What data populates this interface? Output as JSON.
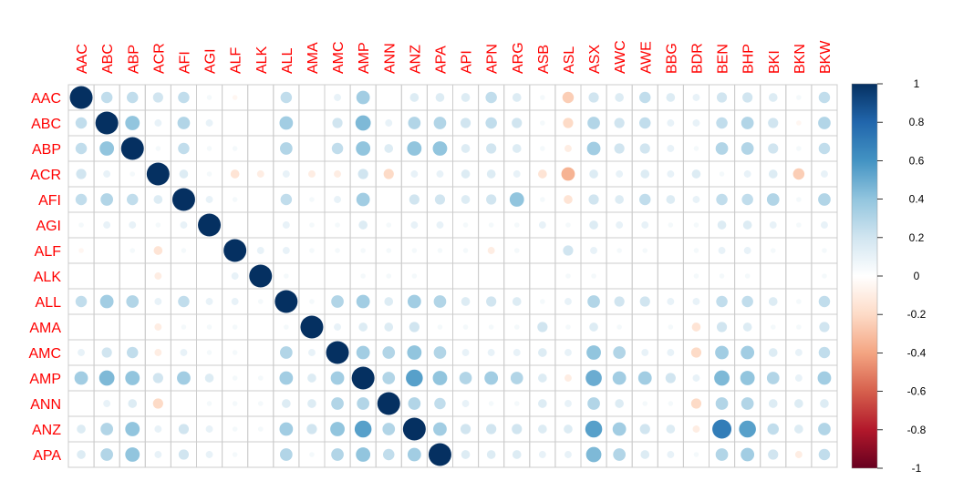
{
  "chart_data": {
    "type": "heatmap",
    "style": "circle correlation matrix",
    "value_range": [
      -1,
      1
    ],
    "columns": [
      "AAC",
      "ABC",
      "ABP",
      "ACR",
      "AFI",
      "AGI",
      "ALF",
      "ALK",
      "ALL",
      "AMA",
      "AMC",
      "AMP",
      "ANN",
      "ANZ",
      "APA",
      "API",
      "APN",
      "ARG",
      "ASB",
      "ASL",
      "ASX",
      "AWC",
      "AWE",
      "BBG",
      "BDR",
      "BEN",
      "BHP",
      "BKI",
      "BKN",
      "BKW"
    ],
    "rows": [
      "AAC",
      "ABC",
      "ABP",
      "ACR",
      "AFI",
      "AGI",
      "ALF",
      "ALK",
      "ALL",
      "AMA",
      "AMC",
      "AMP",
      "ANN",
      "ANZ",
      "APA"
    ],
    "values": [
      [
        1.0,
        0.25,
        0.25,
        0.2,
        0.25,
        0.05,
        -0.05,
        0.0,
        0.25,
        0.0,
        0.1,
        0.35,
        0.0,
        0.15,
        0.15,
        0.15,
        0.25,
        0.15,
        0.05,
        -0.25,
        0.2,
        0.15,
        0.25,
        0.15,
        0.1,
        0.2,
        0.2,
        0.15,
        0.05,
        0.25
      ],
      [
        0.25,
        1.0,
        0.4,
        0.1,
        0.3,
        0.1,
        0.0,
        0.0,
        0.35,
        0.0,
        0.2,
        0.45,
        0.1,
        0.3,
        0.3,
        0.2,
        0.25,
        0.2,
        0.05,
        -0.2,
        0.3,
        0.2,
        0.25,
        0.1,
        0.1,
        0.25,
        0.3,
        0.2,
        -0.05,
        0.3
      ],
      [
        0.25,
        0.4,
        1.0,
        0.05,
        0.25,
        0.05,
        0.05,
        0.0,
        0.3,
        0.0,
        0.25,
        0.4,
        0.15,
        0.4,
        0.4,
        0.15,
        0.2,
        0.15,
        0.05,
        -0.1,
        0.35,
        0.2,
        0.2,
        0.1,
        0.05,
        0.3,
        0.3,
        0.2,
        0.05,
        0.25
      ],
      [
        0.2,
        0.1,
        0.05,
        1.0,
        0.15,
        0.05,
        -0.15,
        -0.1,
        0.1,
        -0.1,
        -0.1,
        0.2,
        -0.2,
        0.1,
        0.1,
        0.15,
        0.15,
        0.1,
        -0.15,
        -0.35,
        0.15,
        0.1,
        0.15,
        0.1,
        0.15,
        0.05,
        0.1,
        0.15,
        -0.25,
        0.1
      ],
      [
        0.25,
        0.3,
        0.25,
        0.15,
        1.0,
        0.1,
        0.05,
        0.0,
        0.25,
        0.05,
        0.1,
        0.35,
        0.0,
        0.2,
        0.2,
        0.15,
        0.2,
        0.4,
        0.05,
        -0.15,
        0.2,
        0.15,
        0.25,
        0.15,
        0.1,
        0.25,
        0.25,
        0.3,
        0.05,
        0.3
      ],
      [
        0.05,
        0.1,
        0.1,
        0.05,
        0.1,
        1.0,
        0.0,
        0.0,
        0.1,
        0.05,
        0.05,
        0.15,
        0.05,
        0.1,
        0.1,
        0.05,
        0.05,
        0.05,
        0.1,
        0.05,
        0.15,
        0.1,
        0.1,
        0.05,
        0.05,
        0.15,
        0.15,
        0.1,
        0.05,
        0.1
      ],
      [
        -0.05,
        0.0,
        0.05,
        -0.15,
        0.05,
        0.0,
        1.0,
        0.1,
        0.1,
        0.05,
        0.05,
        0.05,
        0.05,
        0.05,
        0.05,
        0.05,
        -0.1,
        0.05,
        0.0,
        0.2,
        0.1,
        0.05,
        0.05,
        0.0,
        0.05,
        0.1,
        0.1,
        0.05,
        0.0,
        0.05
      ],
      [
        0.0,
        0.0,
        0.0,
        -0.1,
        0.0,
        0.0,
        0.1,
        1.0,
        0.05,
        0.0,
        0.0,
        0.05,
        0.05,
        0.05,
        0.0,
        0.0,
        0.0,
        0.0,
        0.0,
        0.05,
        0.05,
        0.0,
        0.0,
        0.0,
        0.05,
        0.05,
        0.05,
        0.0,
        0.0,
        0.05
      ],
      [
        0.25,
        0.35,
        0.3,
        0.1,
        0.25,
        0.1,
        0.1,
        0.05,
        1.0,
        0.05,
        0.3,
        0.35,
        0.15,
        0.35,
        0.3,
        0.15,
        0.2,
        0.15,
        0.05,
        0.1,
        0.3,
        0.2,
        0.2,
        0.1,
        0.1,
        0.25,
        0.25,
        0.15,
        0.05,
        0.25
      ],
      [
        0.0,
        0.0,
        0.0,
        -0.1,
        0.05,
        0.05,
        0.05,
        0.0,
        0.05,
        1.0,
        0.1,
        0.15,
        0.15,
        0.2,
        0.05,
        0.05,
        0.05,
        0.05,
        0.2,
        0.05,
        0.15,
        0.05,
        0.0,
        0.05,
        -0.15,
        0.2,
        0.15,
        0.05,
        0.05,
        0.2
      ],
      [
        0.1,
        0.2,
        0.25,
        -0.1,
        0.1,
        0.05,
        0.05,
        0.0,
        0.3,
        0.1,
        1.0,
        0.35,
        0.3,
        0.4,
        0.3,
        0.1,
        0.1,
        0.1,
        0.15,
        0.1,
        0.4,
        0.3,
        0.1,
        0.1,
        -0.2,
        0.35,
        0.35,
        0.15,
        0.1,
        0.25
      ],
      [
        0.35,
        0.45,
        0.4,
        0.2,
        0.35,
        0.15,
        0.05,
        0.05,
        0.35,
        0.15,
        0.35,
        1.0,
        0.3,
        0.55,
        0.4,
        0.3,
        0.35,
        0.3,
        0.15,
        -0.1,
        0.5,
        0.35,
        0.35,
        0.2,
        0.1,
        0.45,
        0.4,
        0.3,
        0.1,
        0.35
      ],
      [
        0.0,
        0.1,
        0.15,
        -0.2,
        0.0,
        0.05,
        0.05,
        0.05,
        0.15,
        0.15,
        0.3,
        0.3,
        1.0,
        0.3,
        0.25,
        0.1,
        0.05,
        0.05,
        0.15,
        0.1,
        0.3,
        0.15,
        0.05,
        0.05,
        -0.2,
        0.3,
        0.3,
        0.15,
        0.15,
        0.15
      ],
      [
        0.15,
        0.3,
        0.4,
        0.1,
        0.2,
        0.1,
        0.05,
        0.05,
        0.35,
        0.2,
        0.4,
        0.55,
        0.3,
        1.0,
        0.35,
        0.2,
        0.2,
        0.2,
        0.15,
        0.15,
        0.55,
        0.35,
        0.2,
        0.15,
        -0.1,
        0.7,
        0.55,
        0.25,
        0.15,
        0.3
      ],
      [
        0.15,
        0.3,
        0.4,
        0.1,
        0.2,
        0.1,
        0.05,
        0.0,
        0.3,
        0.05,
        0.3,
        0.4,
        0.25,
        0.35,
        1.0,
        0.15,
        0.15,
        0.15,
        0.1,
        0.1,
        0.45,
        0.3,
        0.15,
        0.1,
        0.05,
        0.3,
        0.35,
        0.2,
        -0.1,
        0.25
      ]
    ],
    "colorbar": {
      "ticks": [
        1,
        0.8,
        0.6,
        0.4,
        0.2,
        0,
        -0.2,
        -0.4,
        -0.6,
        -0.8,
        -1
      ],
      "tick_labels": [
        "1",
        "0.8",
        "0.6",
        "0.4",
        "0.2",
        "0",
        "-0.2",
        "-0.4",
        "-0.6",
        "-0.8",
        "-1"
      ],
      "colors_high_to_low": [
        "#053061",
        "#2166ac",
        "#4393c3",
        "#92c5de",
        "#d1e5f0",
        "#ffffff",
        "#fddbc7",
        "#f4a582",
        "#d6604d",
        "#b2182b",
        "#67001f"
      ]
    },
    "label_color": "#ff0000",
    "grid_color": "#cccccc"
  }
}
